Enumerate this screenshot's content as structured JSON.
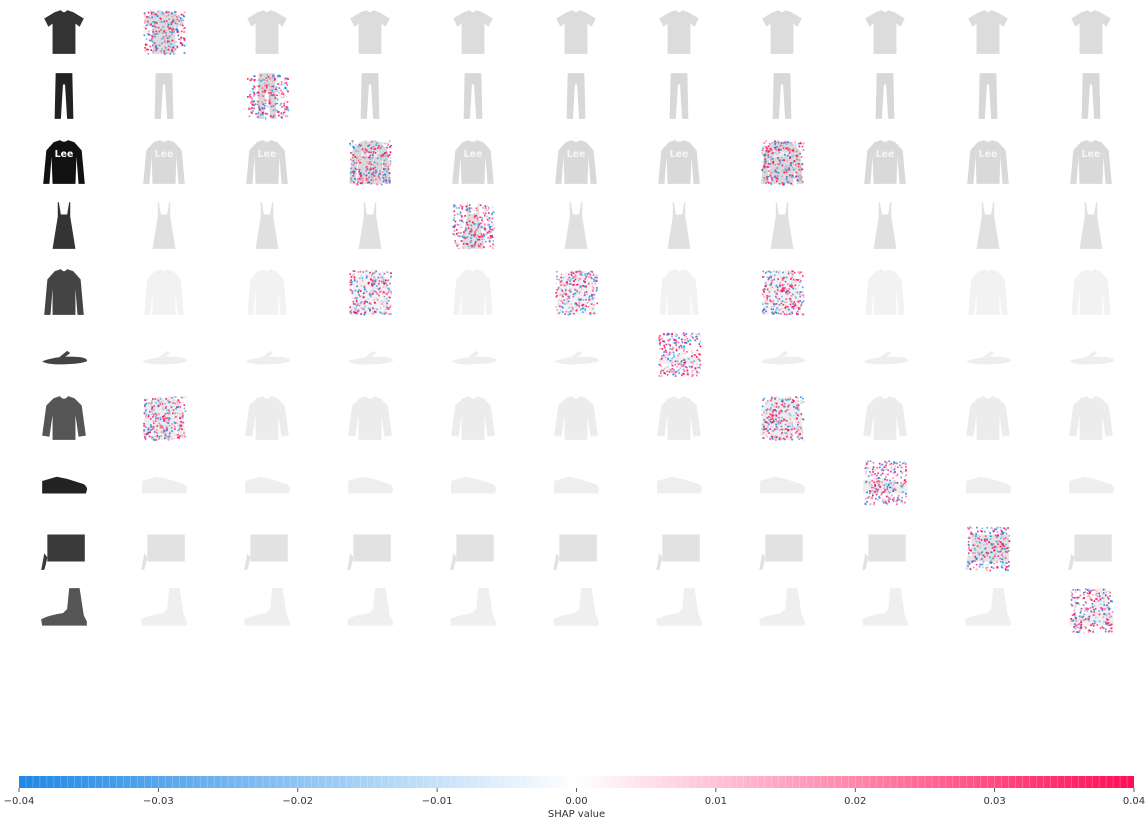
{
  "chart_data": {
    "type": "heatmap",
    "title": "",
    "description_of_layout": null,
    "rows": [
      {
        "item": "tshirt",
        "highlight_columns": [
          1
        ]
      },
      {
        "item": "trouser",
        "highlight_columns": [
          2
        ]
      },
      {
        "item": "pullover",
        "highlight_columns": [
          3,
          7
        ]
      },
      {
        "item": "dress",
        "highlight_columns": [
          4
        ]
      },
      {
        "item": "coat",
        "highlight_columns": [
          3,
          5,
          7
        ]
      },
      {
        "item": "sandal",
        "highlight_columns": [
          6
        ]
      },
      {
        "item": "shirt",
        "highlight_columns": [
          1,
          7
        ]
      },
      {
        "item": "sneaker",
        "highlight_columns": [
          8
        ]
      },
      {
        "item": "bag",
        "highlight_columns": [
          9
        ]
      },
      {
        "item": "boot",
        "highlight_columns": [
          10
        ]
      }
    ],
    "columns": 11,
    "colorbar": {
      "label": "SHAP value",
      "min": -0.04,
      "max": 0.04,
      "ticks": [
        -0.04,
        -0.03,
        -0.02,
        -0.01,
        0.0,
        0.01,
        0.02,
        0.03,
        0.04
      ],
      "tick_labels": [
        "−0.04",
        "−0.03",
        "−0.02",
        "−0.01",
        "0.00",
        "0.01",
        "0.02",
        "0.03",
        "0.04"
      ],
      "negative_color": "#1e88e5",
      "positive_color": "#ff0d57"
    }
  }
}
